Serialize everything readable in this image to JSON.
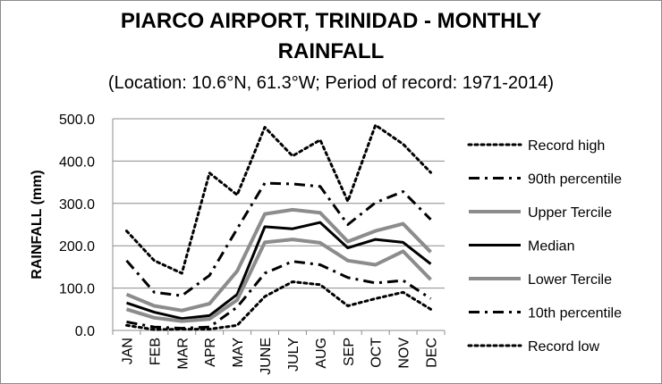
{
  "chart_data": {
    "type": "line",
    "title_line1": "PIARCO AIRPORT, TRINIDAD - MONTHLY",
    "title_line2": "RAINFALL",
    "subtitle": "(Location: 10.6°N, 61.3°W; Period of record: 1971-2014)",
    "xlabel": "",
    "ylabel": "RAINFALL (mm)",
    "ylim": [
      0,
      500
    ],
    "yticks": [
      "0.0",
      "100.0",
      "200.0",
      "300.0",
      "400.0",
      "500.0"
    ],
    "categories": [
      "JAN",
      "FEB",
      "MAR",
      "APR",
      "MAY",
      "JUNE",
      "JULY",
      "AUG",
      "SEP",
      "OCT",
      "NOV",
      "DEC"
    ],
    "grid": "horizontal",
    "legend_position": "right",
    "series": [
      {
        "name": "Record high",
        "style": "dotted",
        "color": "#000000",
        "width": 3,
        "values": [
          235,
          165,
          135,
          372,
          320,
          480,
          412,
          450,
          305,
          485,
          440,
          373
        ]
      },
      {
        "name": "90th percentile",
        "style": "dashdot",
        "color": "#000000",
        "width": 3,
        "values": [
          165,
          90,
          82,
          130,
          240,
          348,
          346,
          340,
          250,
          302,
          328,
          262
        ]
      },
      {
        "name": "Upper Tercile",
        "style": "solid",
        "color": "#8c8c8c",
        "width": 4,
        "values": [
          85,
          58,
          47,
          63,
          140,
          275,
          285,
          278,
          210,
          235,
          252,
          185
        ]
      },
      {
        "name": "Median",
        "style": "solid",
        "color": "#000000",
        "width": 3,
        "values": [
          65,
          43,
          28,
          35,
          85,
          245,
          240,
          255,
          195,
          215,
          208,
          157
        ]
      },
      {
        "name": "Lower Tercile",
        "style": "solid",
        "color": "#8c8c8c",
        "width": 4,
        "values": [
          50,
          30,
          22,
          27,
          72,
          208,
          215,
          207,
          165,
          155,
          187,
          120
        ]
      },
      {
        "name": "10th percentile",
        "style": "dashdot",
        "color": "#000000",
        "width": 3,
        "values": [
          20,
          8,
          5,
          8,
          55,
          135,
          163,
          155,
          125,
          112,
          118,
          75
        ]
      },
      {
        "name": "Record low",
        "style": "dotted",
        "color": "#000000",
        "width": 3,
        "values": [
          12,
          2,
          3,
          3,
          12,
          80,
          115,
          108,
          58,
          75,
          90,
          50
        ]
      }
    ]
  }
}
